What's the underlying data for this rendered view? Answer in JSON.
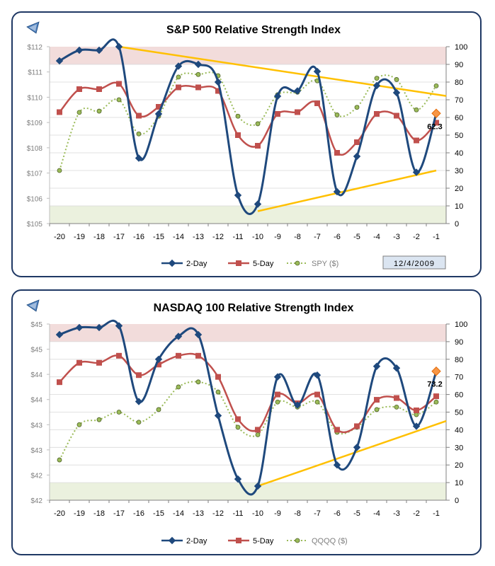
{
  "chart_data": [
    {
      "type": "line",
      "title": "S&P 500 Relative Strength Index",
      "categories": [
        "-20",
        "-19",
        "-18",
        "-17",
        "-16",
        "-15",
        "-14",
        "-13",
        "-12",
        "-11",
        "-10",
        "-9",
        "-8",
        "-7",
        "-6",
        "-5",
        "-4",
        "-3",
        "-2",
        "-1"
      ],
      "left_axis": {
        "labels": [
          "$112",
          "$111",
          "$110",
          "$109",
          "$108",
          "$107",
          "$106",
          "$105"
        ],
        "range": [
          105,
          112
        ]
      },
      "right_axis": {
        "labels": [
          "100",
          "90",
          "80",
          "70",
          "60",
          "50",
          "40",
          "30",
          "20",
          "10",
          "0"
        ],
        "range": [
          0,
          100
        ]
      },
      "bands": [
        {
          "from": 90,
          "to": 100,
          "color": "#f2dcdb"
        },
        {
          "from": 0,
          "to": 10,
          "color": "#ebf1de"
        }
      ],
      "series": [
        {
          "name": "2-Day",
          "axis": "right",
          "color": "#1f497d",
          "marker": "diamond",
          "values": [
            92,
            98,
            98,
            100,
            37,
            62,
            89,
            90,
            80,
            16,
            11,
            72,
            75,
            86,
            18,
            38,
            78,
            74,
            29,
            62
          ]
        },
        {
          "name": "5-Day",
          "axis": "right",
          "color": "#c0504d",
          "marker": "square",
          "values": [
            63,
            76,
            76,
            79,
            61,
            66,
            77,
            77,
            75,
            50,
            44,
            62,
            63,
            68,
            40,
            46,
            62,
            61,
            47,
            57
          ]
        },
        {
          "name": "SPY ($)",
          "axis": "left",
          "color": "#9bbb59",
          "marker": "circle",
          "values": [
            107.1,
            109.4,
            109.45,
            109.9,
            108.55,
            109.25,
            110.8,
            110.9,
            110.85,
            109.25,
            108.95,
            110.1,
            110.2,
            110.65,
            109.3,
            109.6,
            110.75,
            110.7,
            109.5,
            110.45
          ]
        }
      ],
      "trendlines": [
        {
          "color": "#ffc000",
          "from": {
            "x": "-17",
            "y": 100
          },
          "to": {
            "x": "-1",
            "y": 73
          },
          "extend_to_edge": true
        },
        {
          "color": "#ffc000",
          "from": {
            "x": "-10",
            "y": 7
          },
          "to": {
            "x": "-1",
            "y": 30
          },
          "extend_to_edge": false
        }
      ],
      "highlight": {
        "x": "-1",
        "y": 62.3,
        "label": "62.3",
        "color": "#f79646"
      },
      "legend": {
        "position": "bottom",
        "entries": [
          "2-Day",
          "5-Day",
          "SPY ($)"
        ]
      },
      "date_label": "12/4/2009"
    },
    {
      "type": "line",
      "title": "NASDAQ 100 Relative Strength Index",
      "categories": [
        "-20",
        "-19",
        "-18",
        "-17",
        "-16",
        "-15",
        "-14",
        "-13",
        "-12",
        "-11",
        "-10",
        "-9",
        "-8",
        "-7",
        "-6",
        "-5",
        "-4",
        "-3",
        "-2",
        "-1"
      ],
      "left_axis": {
        "labels": [
          "$45",
          "$45",
          "$44",
          "$44",
          "$43",
          "$43",
          "$42",
          "$42"
        ],
        "range": [
          42,
          45.5
        ]
      },
      "right_axis": {
        "labels": [
          "100",
          "90",
          "80",
          "70",
          "60",
          "50",
          "40",
          "30",
          "20",
          "10",
          "0"
        ],
        "range": [
          0,
          100
        ]
      },
      "bands": [
        {
          "from": 90,
          "to": 100,
          "color": "#f2dcdb"
        },
        {
          "from": 0,
          "to": 10,
          "color": "#ebf1de"
        }
      ],
      "series": [
        {
          "name": "2-Day",
          "axis": "right",
          "color": "#1f497d",
          "marker": "diamond",
          "values": [
            94,
            98,
            98,
            99,
            56,
            80,
            93,
            94,
            48,
            12,
            8,
            70,
            54,
            71,
            20,
            30,
            76,
            75,
            42,
            73
          ]
        },
        {
          "name": "5-Day",
          "axis": "right",
          "color": "#c0504d",
          "marker": "square",
          "values": [
            67,
            78,
            78,
            82,
            71,
            77,
            82,
            82,
            70,
            46,
            40,
            60,
            55,
            60,
            40,
            42,
            57,
            58,
            51,
            59
          ]
        },
        {
          "name": "QQQQ ($)",
          "axis": "left",
          "color": "#9bbb59",
          "marker": "circle",
          "values": [
            42.8,
            43.5,
            43.6,
            43.75,
            43.55,
            43.8,
            44.25,
            44.35,
            44.15,
            43.45,
            43.3,
            43.95,
            43.85,
            43.95,
            43.35,
            43.45,
            43.8,
            43.85,
            43.7,
            43.95
          ]
        }
      ],
      "trendlines": [
        {
          "color": "#ffc000",
          "from": {
            "x": "-10",
            "y": 8
          },
          "to": {
            "x": "-1",
            "y": 43
          },
          "extend_to_edge": true
        }
      ],
      "highlight": {
        "x": "-1",
        "y": 73.2,
        "label": "73.2",
        "color": "#f79646"
      },
      "legend": {
        "position": "bottom",
        "entries": [
          "2-Day",
          "5-Day",
          "QQQQ ($)"
        ]
      }
    }
  ],
  "nav": {
    "back_icon": "back-triangle-icon"
  }
}
